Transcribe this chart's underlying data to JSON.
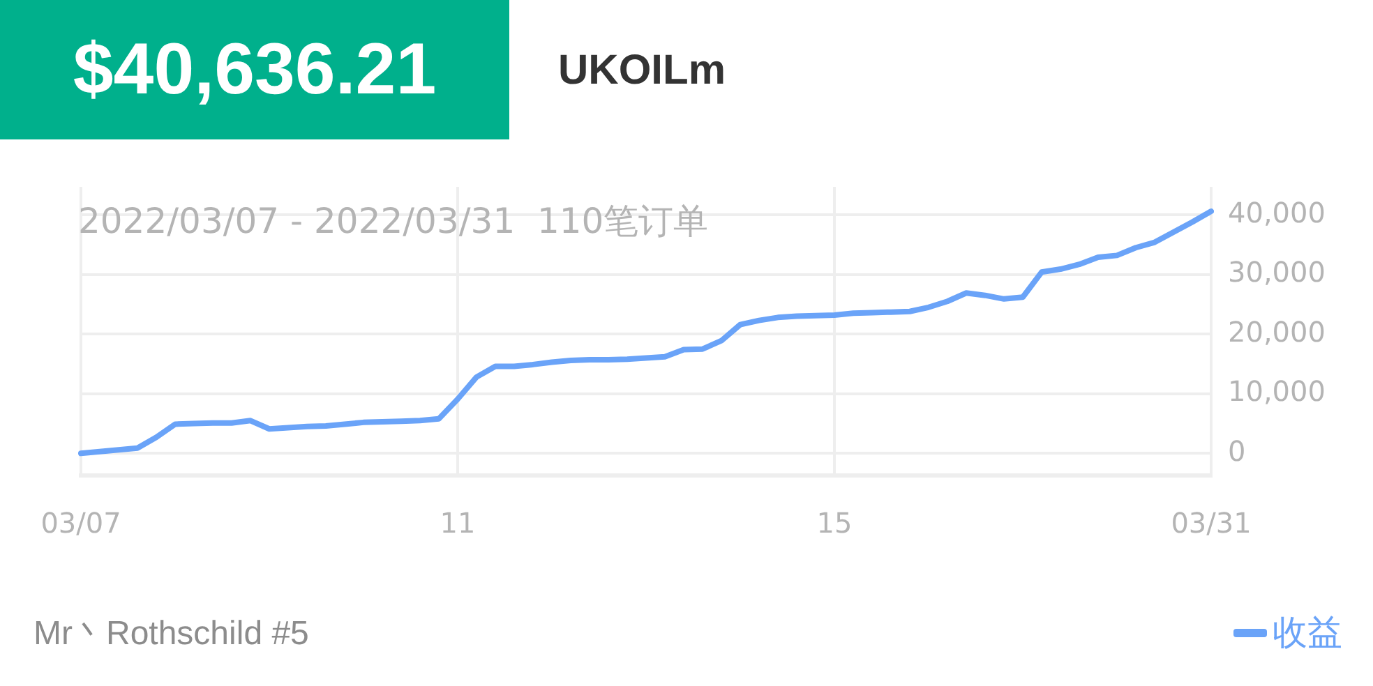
{
  "chart_data": {
    "type": "line",
    "title": "$40,636.21",
    "subtitle": "UKOILm",
    "annotations": [
      "2022/03/07 - 2022/03/31  110笔订单",
      "Mr丶Rothschild #5"
    ],
    "categories": [
      "03/07",
      null,
      null,
      null,
      null,
      null,
      null,
      null,
      null,
      null,
      null,
      null,
      null,
      null,
      null,
      null,
      null,
      null,
      null,
      null,
      "11",
      null,
      null,
      null,
      null,
      null,
      null,
      null,
      null,
      null,
      null,
      null,
      null,
      null,
      null,
      null,
      null,
      null,
      null,
      null,
      "15",
      null,
      null,
      null,
      null,
      null,
      null,
      null,
      null,
      null,
      null,
      null,
      null,
      null,
      null,
      null,
      null,
      null,
      null,
      null,
      "03/31"
    ],
    "series": [
      {
        "name": "收益",
        "color": "#6aa3f8",
        "values": [
          0,
          300,
          600,
          900,
          2700,
          4900,
          5000,
          5100,
          5100,
          5500,
          4100,
          4300,
          4500,
          4600,
          4900,
          5200,
          5300,
          5400,
          5500,
          5800,
          9100,
          12800,
          14600,
          14600,
          14900,
          15300,
          15600,
          15700,
          15700,
          15800,
          16000,
          16200,
          17400,
          17500,
          18900,
          21600,
          22300,
          22800,
          23000,
          23100,
          23200,
          23500,
          23600,
          23700,
          23800,
          24500,
          25500,
          26900,
          26500,
          25900,
          26200,
          30400,
          30900,
          31700,
          32900,
          33200,
          34500,
          35400,
          37100,
          38800,
          40600
        ]
      }
    ],
    "ylim": [
      -3700,
      44700
    ],
    "yticks": [
      {
        "value": 0,
        "label": "0"
      },
      {
        "value": 10000,
        "label": "10,000"
      },
      {
        "value": 20000,
        "label": "20,000"
      },
      {
        "value": 30000,
        "label": "30,000"
      },
      {
        "value": 40000,
        "label": "40,000"
      }
    ],
    "grid": true,
    "legend": "bottom right",
    "marker": "none",
    "line_style": "solid"
  }
}
